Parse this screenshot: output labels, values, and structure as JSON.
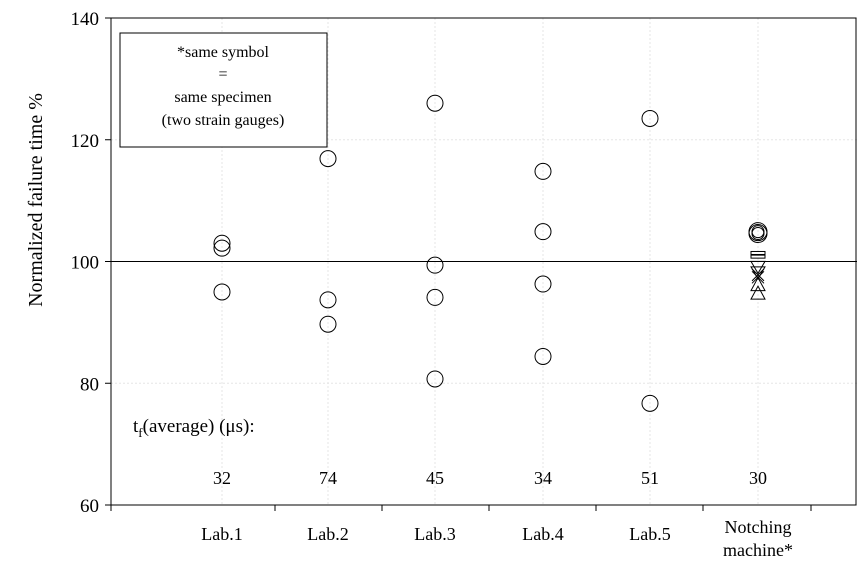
{
  "chart_data": {
    "type": "scatter",
    "ylabel": "Normalized failure time %",
    "xlabel": "",
    "ylim": [
      60,
      140
    ],
    "yticks": [
      60,
      80,
      100,
      120,
      140
    ],
    "grid": true,
    "reference_line": 100,
    "categories": [
      "Lab.1",
      "Lab.2",
      "Lab.3",
      "Lab.4",
      "Lab.5",
      "Notching machine*"
    ],
    "points": [
      {
        "category": "Lab.1",
        "values": [
          95,
          102.2,
          103
        ]
      },
      {
        "category": "Lab.2",
        "values": [
          89.7,
          93.7,
          116.9
        ]
      },
      {
        "category": "Lab.3",
        "values": [
          80.7,
          94.1,
          99.4,
          126
        ]
      },
      {
        "category": "Lab.4",
        "values": [
          84.4,
          96.3,
          104.9,
          114.8
        ]
      },
      {
        "category": "Lab.5",
        "values": [
          76.7,
          123.5
        ]
      }
    ],
    "notching_machine_symbols": [
      {
        "symbol": "double-circle",
        "values": [
          104.9,
          104.6
        ]
      },
      {
        "symbol": "dash",
        "values": [
          101.4,
          100.8
        ]
      },
      {
        "symbol": "down-triangle",
        "values": [
          99.2,
          98.3
        ]
      },
      {
        "symbol": "x",
        "values": [
          97.8,
          97.4
        ]
      },
      {
        "symbol": "up-triangle",
        "values": [
          96.2,
          94.8
        ]
      }
    ],
    "annotation_box": [
      "*same symbol",
      "=",
      "same specimen",
      "(two strain gauges)"
    ],
    "tf_average": {
      "label_prefix": "t",
      "label_subscript": "f",
      "label_suffix": "(average) (μs):",
      "values": [
        "32",
        "74",
        "45",
        "34",
        "51",
        "30"
      ]
    }
  }
}
